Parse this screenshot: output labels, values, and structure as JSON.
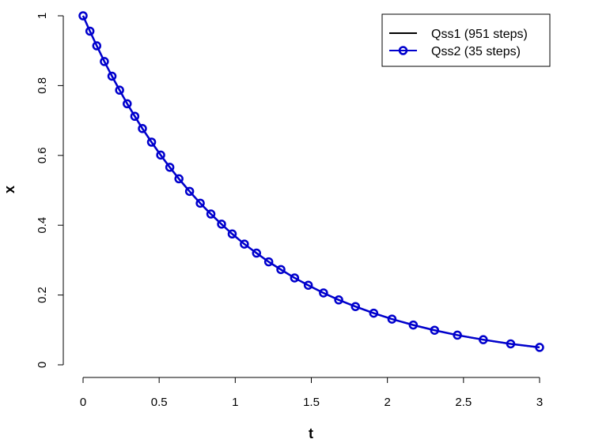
{
  "chart_data": {
    "type": "line",
    "title": "",
    "xlabel": "t",
    "ylabel": "x",
    "xlim": [
      0,
      3
    ],
    "ylim": [
      0,
      1
    ],
    "x_ticks": [
      "0",
      "0.5",
      "1",
      "1.5",
      "2",
      "2.5",
      "3"
    ],
    "y_ticks": [
      "0",
      "0.2",
      "0.4",
      "0.6",
      "0.8",
      "1"
    ],
    "grid": false,
    "legend_position": "top-right",
    "series": [
      {
        "name": "Qss1 (951 steps)",
        "color": "#000000",
        "style": "line",
        "function": "exp(-t)",
        "x": [
          0,
          0.25,
          0.5,
          0.75,
          1,
          1.25,
          1.5,
          1.75,
          2,
          2.25,
          2.5,
          2.75,
          3
        ],
        "y": [
          1,
          0.779,
          0.607,
          0.472,
          0.368,
          0.287,
          0.223,
          0.174,
          0.135,
          0.105,
          0.082,
          0.064,
          0.05
        ]
      },
      {
        "name": "Qss2 (35 steps)",
        "color": "#0000cd",
        "style": "line+circles",
        "x": [
          0,
          0.045,
          0.09,
          0.14,
          0.19,
          0.24,
          0.29,
          0.34,
          0.39,
          0.45,
          0.51,
          0.57,
          0.63,
          0.7,
          0.77,
          0.84,
          0.91,
          0.98,
          1.06,
          1.14,
          1.22,
          1.3,
          1.39,
          1.48,
          1.58,
          1.68,
          1.79,
          1.91,
          2.03,
          2.17,
          2.31,
          2.46,
          2.63,
          2.81,
          3.0
        ],
        "y": [
          1,
          0.956,
          0.914,
          0.869,
          0.827,
          0.787,
          0.748,
          0.712,
          0.677,
          0.638,
          0.601,
          0.566,
          0.533,
          0.497,
          0.463,
          0.432,
          0.403,
          0.375,
          0.346,
          0.32,
          0.295,
          0.273,
          0.249,
          0.228,
          0.206,
          0.186,
          0.167,
          0.148,
          0.131,
          0.114,
          0.099,
          0.085,
          0.072,
          0.06,
          0.05
        ]
      }
    ]
  }
}
